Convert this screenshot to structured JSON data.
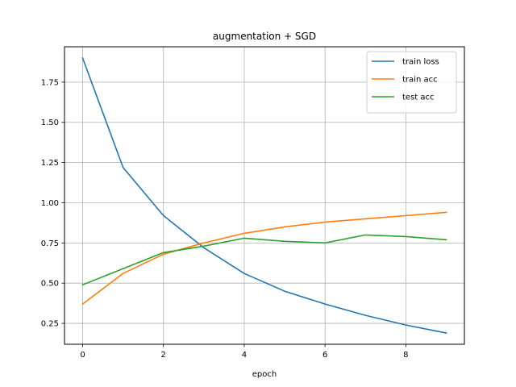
{
  "chart_data": {
    "type": "line",
    "title": "augmentation + SGD",
    "xlabel": "epoch",
    "ylabel": "",
    "x": [
      0,
      1,
      2,
      3,
      4,
      5,
      6,
      7,
      8,
      9
    ],
    "xlim": [
      -0.45,
      9.45
    ],
    "ylim": [
      0.12,
      1.97
    ],
    "xticks": [
      0,
      2,
      4,
      6,
      8
    ],
    "yticks": [
      0.25,
      0.5,
      0.75,
      1.0,
      1.25,
      1.5,
      1.75
    ],
    "xtick_labels": [
      "0",
      "2",
      "4",
      "6",
      "8"
    ],
    "ytick_labels": [
      "0.25",
      "0.50",
      "0.75",
      "1.00",
      "1.25",
      "1.50",
      "1.75"
    ],
    "grid": true,
    "legend_position": "upper right",
    "series": [
      {
        "name": "train loss",
        "color": "#1f77b4",
        "values": [
          1.9,
          1.22,
          0.92,
          0.72,
          0.56,
          0.45,
          0.37,
          0.3,
          0.24,
          0.19
        ]
      },
      {
        "name": "train acc",
        "color": "#ff7f0e",
        "values": [
          0.37,
          0.56,
          0.68,
          0.75,
          0.81,
          0.85,
          0.88,
          0.9,
          0.92,
          0.94
        ]
      },
      {
        "name": "test acc",
        "color": "#2ca02c",
        "values": [
          0.49,
          0.59,
          0.69,
          0.73,
          0.78,
          0.76,
          0.75,
          0.8,
          0.79,
          0.77
        ]
      }
    ]
  }
}
